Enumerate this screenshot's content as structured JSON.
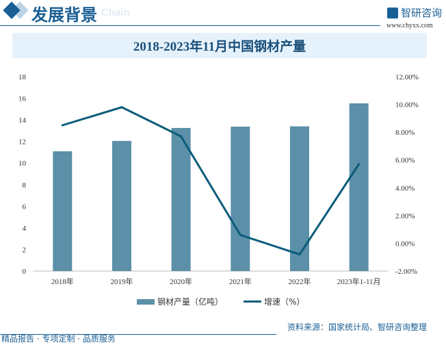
{
  "header": {
    "title": "发展背景",
    "subtitle": "Chain",
    "logo_text": "智研咨询",
    "url": "www.chyxx.com"
  },
  "source": "资料来源：国家统计局、智研咨询整理",
  "footer": "精品报告 · 专项定制 · 品质服务",
  "chart_data": {
    "type": "bar+line",
    "title": "2018-2023年11月中国钢材产量",
    "categories": [
      "2018年",
      "2019年",
      "2020年",
      "2021年",
      "2022年",
      "2023年1-11月"
    ],
    "series": [
      {
        "name": "钢材产量（亿吨）",
        "type": "bar",
        "axis": "left",
        "color": "#5b90a8",
        "values": [
          11.09,
          12.05,
          13.25,
          13.37,
          13.4,
          15.53
        ]
      },
      {
        "name": "增速（%）",
        "type": "line",
        "axis": "right",
        "color": "#0b5c7a",
        "values": [
          8.5,
          9.8,
          7.7,
          0.6,
          -0.8,
          5.7
        ]
      }
    ],
    "y_left": {
      "range": [
        0,
        18
      ],
      "ticks": [
        "0",
        "2",
        "4",
        "6",
        "8",
        "10",
        "12",
        "14",
        "16",
        "18"
      ]
    },
    "y_right": {
      "range": [
        -2,
        12
      ],
      "ticks": [
        "-2.00%",
        "0.00%",
        "2.00%",
        "4.00%",
        "6.00%",
        "8.00%",
        "10.00%",
        "12.00%"
      ]
    },
    "grid": false,
    "legend": "bottom"
  }
}
